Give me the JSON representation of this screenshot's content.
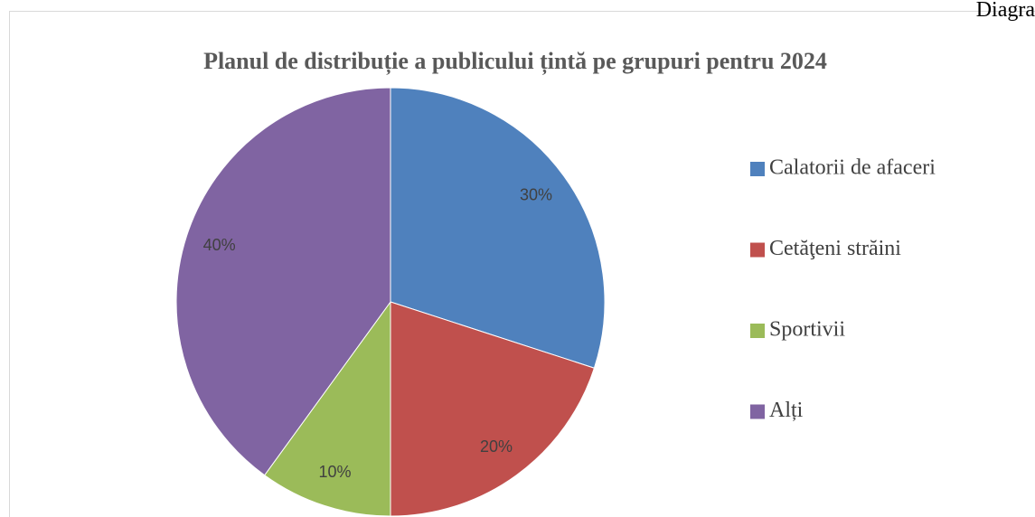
{
  "corner_text": "Diagra",
  "chart_data": {
    "type": "pie",
    "title": "Planul de distribuție a publicului țintă pe grupuri pentru 2024",
    "categories": [
      "Calatorii de afaceri",
      "Cetăţeni străini",
      "Sportivii",
      "Alți"
    ],
    "values": [
      30,
      20,
      10,
      40
    ],
    "value_labels": [
      "30%",
      "20%",
      "10%",
      "40%"
    ],
    "colors": [
      "#4f81bd",
      "#c0504d",
      "#9bbb59",
      "#8064a2"
    ],
    "legend": "right"
  }
}
